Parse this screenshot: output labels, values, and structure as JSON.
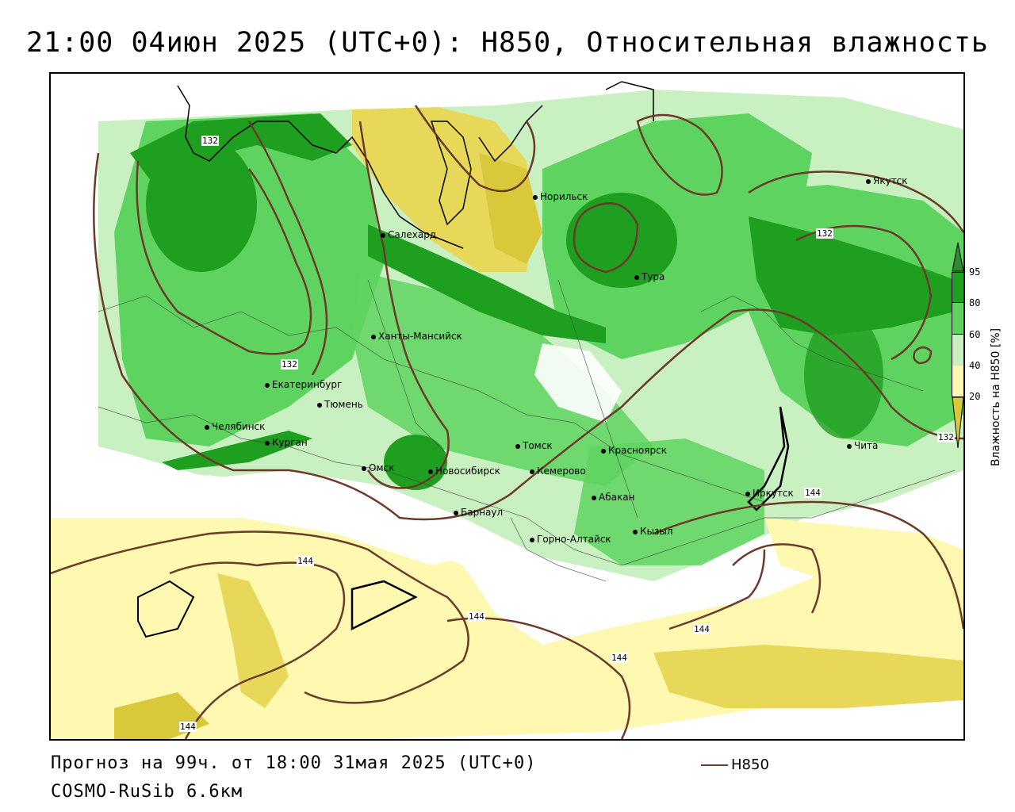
{
  "title": "21:00 04июн 2025 (UTC+0): H850, Относительная влажность",
  "footer": {
    "forecast": "Прогноз на 99ч. от 18:00 31мая 2025 (UTC+0)",
    "model": "COSMO-RuSib 6.6км"
  },
  "legend": {
    "label": "H850",
    "color": "#6b3a2a"
  },
  "colorbar": {
    "label": "Влажность на H850 [%]",
    "ticks": [
      "95",
      "80",
      "60",
      "40",
      "20"
    ],
    "colors": {
      "over95": "#2e8b2e",
      "c80_95": "#1f9f1f",
      "c60_80": "#5fd35f",
      "c40_60": "#c8f0c0",
      "c20_40": "#ffffff",
      "c0_20": "#fff8b0",
      "under": "#d9c93a"
    }
  },
  "contour_labels": [
    "132",
    "132",
    "132",
    "132",
    "144",
    "144",
    "144",
    "144",
    "144",
    "144"
  ],
  "cities": [
    "Якутск",
    "Норильск",
    "Салехард",
    "Тура",
    "Ханты-Мансийск",
    "Екатеринбург",
    "Тюмень",
    "Челябинск",
    "Курган",
    "Омск",
    "Новосибирск",
    "Томск",
    "Красноярск",
    "Кемерово",
    "Барнаул",
    "Абакан",
    "Иркутск",
    "Кызыл",
    "Горно-Алтайск",
    "Чита"
  ]
}
